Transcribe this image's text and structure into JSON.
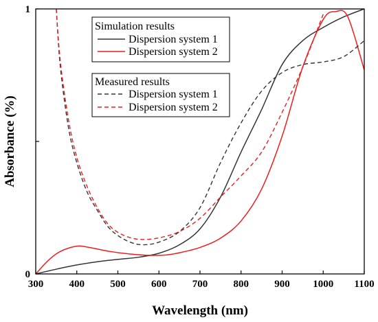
{
  "chart_data": {
    "type": "line",
    "xlabel": "Wavelength (nm)",
    "ylabel": "Absorbance (%)",
    "xlim": [
      300,
      1100
    ],
    "ylim": [
      0,
      1
    ],
    "x_ticks": [
      "300",
      "400",
      "500",
      "600",
      "700",
      "800",
      "900",
      "1000",
      "1100"
    ],
    "y_ticks": [
      {
        "value": 0,
        "label": "0"
      },
      {
        "value": 0.5,
        "label": ""
      },
      {
        "value": 1,
        "label": "1"
      }
    ],
    "grid": false,
    "legend_position": "top-left",
    "legend_groups": [
      {
        "title": "Simulation results",
        "entries": [
          {
            "series": 0,
            "label": "Dispersion system 1"
          },
          {
            "series": 1,
            "label": "Dispersion system 2"
          }
        ]
      },
      {
        "title": "Measured results",
        "entries": [
          {
            "series": 2,
            "label": "Dispersion system 1"
          },
          {
            "series": 3,
            "label": "Dispersion system 2"
          }
        ]
      }
    ],
    "series": [
      {
        "group": "Simulation results",
        "name": "Dispersion system 1",
        "color": "#333333",
        "style": "solid",
        "points": [
          [
            300,
            0.0
          ],
          [
            350,
            0.018
          ],
          [
            400,
            0.034
          ],
          [
            450,
            0.046
          ],
          [
            500,
            0.055
          ],
          [
            550,
            0.063
          ],
          [
            600,
            0.078
          ],
          [
            650,
            0.11
          ],
          [
            700,
            0.17
          ],
          [
            750,
            0.29
          ],
          [
            800,
            0.46
          ],
          [
            850,
            0.62
          ],
          [
            900,
            0.79
          ],
          [
            950,
            0.88
          ],
          [
            1000,
            0.93
          ],
          [
            1050,
            0.97
          ],
          [
            1100,
            1.0
          ]
        ]
      },
      {
        "group": "Simulation results",
        "name": "Dispersion system 2",
        "color": "#ee1c1c",
        "style": "solid",
        "points": [
          [
            300,
            0.0
          ],
          [
            330,
            0.05
          ],
          [
            360,
            0.085
          ],
          [
            400,
            0.105
          ],
          [
            430,
            0.1
          ],
          [
            480,
            0.085
          ],
          [
            530,
            0.075
          ],
          [
            580,
            0.07
          ],
          [
            620,
            0.072
          ],
          [
            650,
            0.08
          ],
          [
            700,
            0.1
          ],
          [
            750,
            0.135
          ],
          [
            800,
            0.2
          ],
          [
            850,
            0.32
          ],
          [
            900,
            0.52
          ],
          [
            950,
            0.78
          ],
          [
            1000,
            0.96
          ],
          [
            1030,
            0.99
          ],
          [
            1060,
            0.97
          ],
          [
            1100,
            0.77
          ]
        ]
      },
      {
        "group": "Measured results",
        "name": "Dispersion system 1",
        "color": "#333333",
        "style": "dashed",
        "points": [
          [
            350,
            1.0
          ],
          [
            360,
            0.78
          ],
          [
            380,
            0.55
          ],
          [
            400,
            0.42
          ],
          [
            425,
            0.31
          ],
          [
            450,
            0.24
          ],
          [
            475,
            0.18
          ],
          [
            500,
            0.145
          ],
          [
            530,
            0.12
          ],
          [
            560,
            0.11
          ],
          [
            600,
            0.12
          ],
          [
            650,
            0.16
          ],
          [
            700,
            0.25
          ],
          [
            750,
            0.42
          ],
          [
            800,
            0.57
          ],
          [
            850,
            0.69
          ],
          [
            900,
            0.76
          ],
          [
            950,
            0.79
          ],
          [
            1000,
            0.8
          ],
          [
            1050,
            0.82
          ],
          [
            1100,
            0.88
          ]
        ]
      },
      {
        "group": "Measured results",
        "name": "Dispersion system 2",
        "color": "#ee1c1c",
        "style": "dashed",
        "points": [
          [
            350,
            1.0
          ],
          [
            360,
            0.8
          ],
          [
            380,
            0.58
          ],
          [
            400,
            0.44
          ],
          [
            425,
            0.33
          ],
          [
            450,
            0.25
          ],
          [
            475,
            0.19
          ],
          [
            500,
            0.157
          ],
          [
            530,
            0.137
          ],
          [
            560,
            0.13
          ],
          [
            600,
            0.136
          ],
          [
            650,
            0.16
          ],
          [
            700,
            0.21
          ],
          [
            750,
            0.29
          ],
          [
            800,
            0.37
          ],
          [
            850,
            0.46
          ],
          [
            900,
            0.61
          ],
          [
            950,
            0.78
          ],
          [
            1000,
            0.98
          ]
        ]
      }
    ]
  }
}
